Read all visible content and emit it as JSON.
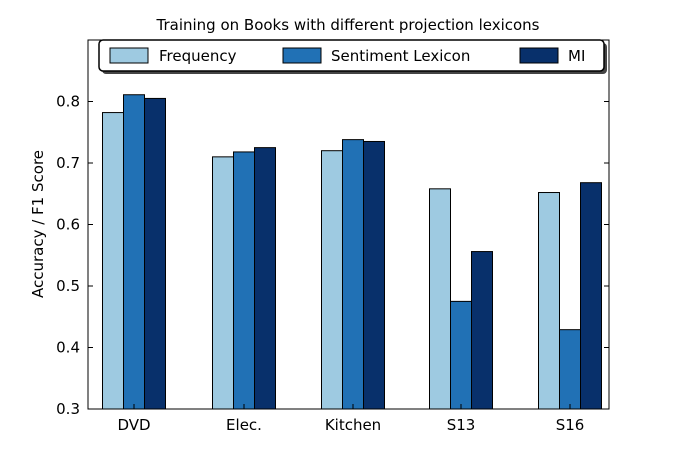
{
  "chart_data": {
    "type": "bar",
    "title": "Training on Books with different projection lexicons",
    "xlabel": "",
    "ylabel": "Accuracy / F1 Score",
    "categories": [
      "DVD",
      "Elec.",
      "Kitchen",
      "S13",
      "S16"
    ],
    "series": [
      {
        "name": "Frequency",
        "color": "#9ecae1",
        "values": [
          0.782,
          0.71,
          0.72,
          0.658,
          0.652
        ]
      },
      {
        "name": "Sentiment Lexicon",
        "color": "#2171b5",
        "values": [
          0.811,
          0.718,
          0.738,
          0.475,
          0.429
        ]
      },
      {
        "name": "MI",
        "color": "#08306b",
        "values": [
          0.805,
          0.725,
          0.735,
          0.556,
          0.668
        ]
      }
    ],
    "ylim": [
      0.3,
      0.9
    ],
    "yticks": [
      "0.3",
      "0.4",
      "0.5",
      "0.6",
      "0.7",
      "0.8"
    ],
    "grid": false,
    "legend_position": "top"
  }
}
